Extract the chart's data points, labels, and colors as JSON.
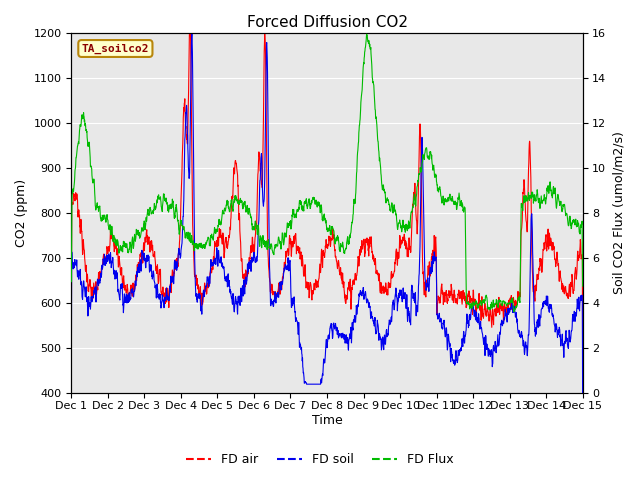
{
  "title": "Forced Diffusion CO2",
  "xlabel": "Time",
  "ylabel_left": "CO2 (ppm)",
  "ylabel_right": "Soil CO2 Flux (umol/m2/s)",
  "ylim_left": [
    400,
    1200
  ],
  "ylim_right": [
    0,
    16
  ],
  "xlim": [
    0,
    14
  ],
  "x_tick_labels": [
    "Dec 1",
    "Dec 2",
    "Dec 3",
    "Dec 4",
    "Dec 5",
    "Dec 6",
    "Dec 7",
    "Dec 8",
    "Dec 9",
    "Dec 10",
    "Dec 11",
    "Dec 12",
    "Dec 13",
    "Dec 14",
    "Dec 15"
  ],
  "legend_label": "TA_soilco2",
  "series_labels": [
    "FD air",
    "FD soil",
    "FD Flux"
  ],
  "series_colors": [
    "#ff0000",
    "#0000ee",
    "#00bb00"
  ],
  "background_color": "#e8e8e8",
  "title_fontsize": 11,
  "axis_fontsize": 9,
  "tick_fontsize": 8
}
